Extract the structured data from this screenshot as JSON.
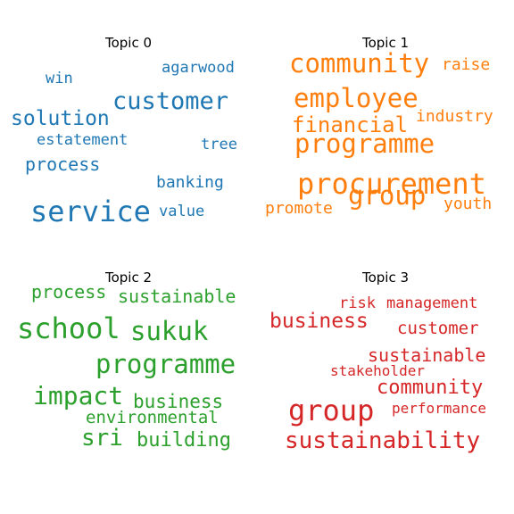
{
  "chart_data": {
    "type": "wordcloud",
    "panels": [
      {
        "title": "Topic 0",
        "color": "#1f77b4",
        "words": [
          {
            "text": "service",
            "size": 32
          },
          {
            "text": "customer",
            "size": 27
          },
          {
            "text": "solution",
            "size": 23
          },
          {
            "text": "process",
            "size": 20
          },
          {
            "text": "banking",
            "size": 18
          },
          {
            "text": "estatement",
            "size": 17
          },
          {
            "text": "value",
            "size": 17
          },
          {
            "text": "agarwood",
            "size": 17
          },
          {
            "text": "tree",
            "size": 17
          },
          {
            "text": "win",
            "size": 17
          }
        ]
      },
      {
        "title": "Topic 1",
        "color": "#ff7f0e",
        "words": [
          {
            "text": "procurement",
            "size": 32
          },
          {
            "text": "community",
            "size": 29
          },
          {
            "text": "programme",
            "size": 29
          },
          {
            "text": "employee",
            "size": 29
          },
          {
            "text": "group",
            "size": 29
          },
          {
            "text": "financial",
            "size": 24
          },
          {
            "text": "industry",
            "size": 18
          },
          {
            "text": "raise",
            "size": 18
          },
          {
            "text": "youth",
            "size": 18
          },
          {
            "text": "promote",
            "size": 18
          }
        ]
      },
      {
        "title": "Topic 2",
        "color": "#2ca02c",
        "words": [
          {
            "text": "school",
            "size": 32
          },
          {
            "text": "programme",
            "size": 29
          },
          {
            "text": "sukuk",
            "size": 29
          },
          {
            "text": "impact",
            "size": 28
          },
          {
            "text": "sri",
            "size": 26
          },
          {
            "text": "building",
            "size": 22
          },
          {
            "text": "business",
            "size": 21
          },
          {
            "text": "sustainable",
            "size": 20
          },
          {
            "text": "process",
            "size": 20
          },
          {
            "text": "environmental",
            "size": 19
          }
        ]
      },
      {
        "title": "Topic 3",
        "color": "#d62728",
        "words": [
          {
            "text": "group",
            "size": 32
          },
          {
            "text": "sustainability",
            "size": 26
          },
          {
            "text": "business",
            "size": 23
          },
          {
            "text": "community",
            "size": 22
          },
          {
            "text": "sustainable",
            "size": 20
          },
          {
            "text": "customer",
            "size": 19
          },
          {
            "text": "management",
            "size": 17
          },
          {
            "text": "risk",
            "size": 17
          },
          {
            "text": "performance",
            "size": 16
          },
          {
            "text": "stakeholder",
            "size": 16
          }
        ]
      }
    ]
  }
}
